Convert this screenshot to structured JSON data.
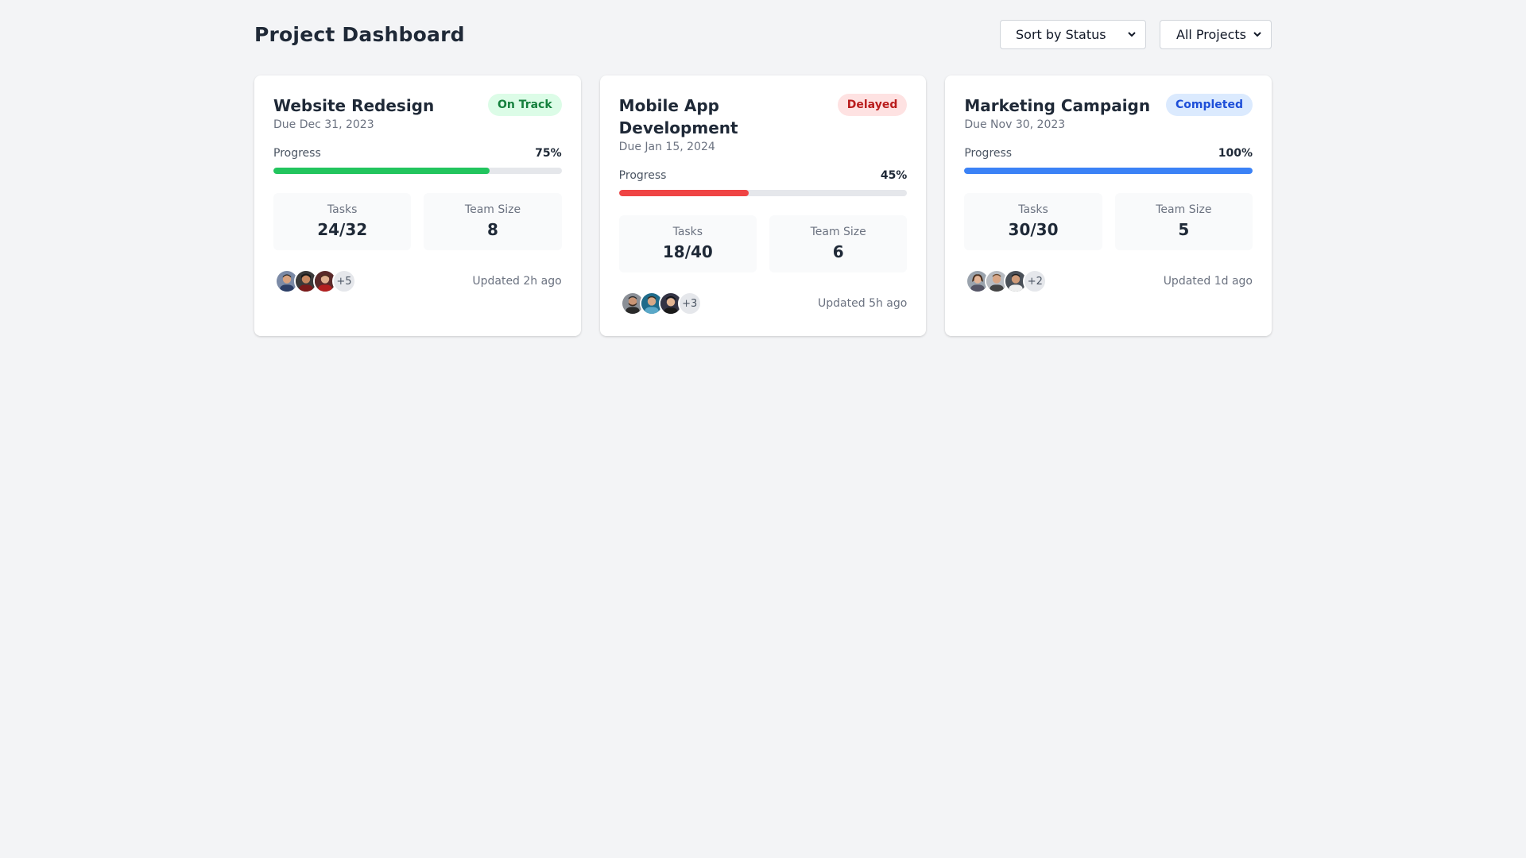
{
  "header": {
    "title": "Project Dashboard",
    "sort_select": "Sort by Status",
    "filter_select": "All Projects"
  },
  "projects": [
    {
      "title": "Website Redesign",
      "due": "Due Dec 31, 2023",
      "status": "On Track",
      "status_color": "#15803d",
      "progress_label": "Progress",
      "progress_text": "75%",
      "progress": 0.75,
      "bar_color": "#22c55e",
      "tasks_label": "Tasks",
      "tasks": "24/32",
      "team_label": "Team Size",
      "team": "8",
      "more": "+5",
      "updated": "Updated 2h ago"
    },
    {
      "title": "Mobile App Development",
      "due": "Due Jan 15, 2024",
      "status": "Delayed",
      "status_color": "#b91c1c",
      "progress_label": "Progress",
      "progress_text": "45%",
      "progress": 0.45,
      "bar_color": "#ef4444",
      "tasks_label": "Tasks",
      "tasks": "18/40",
      "team_label": "Team Size",
      "team": "6",
      "more": "+3",
      "updated": "Updated 5h ago"
    },
    {
      "title": "Marketing Campaign",
      "due": "Due Nov 30, 2023",
      "status": "Completed",
      "status_color": "#1d4ed8",
      "progress_label": "Progress",
      "progress_text": "100%",
      "progress": 1.0,
      "bar_color": "#3b82f6",
      "tasks_label": "Tasks",
      "tasks": "30/30",
      "team_label": "Team Size",
      "team": "5",
      "more": "+2",
      "updated": "Updated 1d ago"
    }
  ]
}
